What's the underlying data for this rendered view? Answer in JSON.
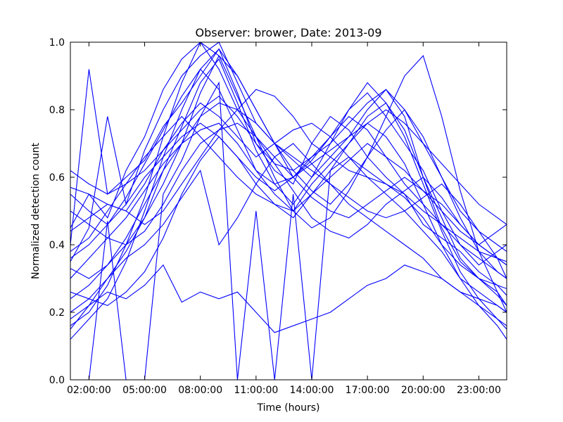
{
  "chart_data": {
    "type": "line",
    "title": "Observer: brower, Date: 2013-09",
    "xlabel": "Time (hours)",
    "ylabel": "Normalized detection count",
    "xlim": [
      1,
      24.5
    ],
    "ylim": [
      0.0,
      1.0
    ],
    "x_ticks": [
      2,
      5,
      8,
      11,
      14,
      17,
      20,
      23
    ],
    "x_tick_labels": [
      "02:00:00",
      "05:00:00",
      "08:00:00",
      "11:00:00",
      "14:00:00",
      "17:00:00",
      "20:00:00",
      "23:00:00"
    ],
    "y_ticks": [
      0.0,
      0.2,
      0.4,
      0.6,
      0.8,
      1.0
    ],
    "y_tick_labels": [
      "0.0",
      "0.2",
      "0.4",
      "0.6",
      "0.8",
      "1.0"
    ],
    "grid": false,
    "legend": false,
    "line_color": "#0000ff",
    "x": [
      1,
      2,
      3,
      4,
      5,
      6,
      7,
      8,
      9,
      10,
      11,
      12,
      13,
      14,
      15,
      16,
      17,
      18,
      19,
      20,
      21,
      22,
      23,
      24,
      24.5
    ],
    "series": [
      {
        "values": [
          0.45,
          0.55,
          0.48,
          0.62,
          0.72,
          0.86,
          0.95,
          1.0,
          0.92,
          0.8,
          0.72,
          0.66,
          0.6,
          0.65,
          0.72,
          0.8,
          0.85,
          0.78,
          0.7,
          0.62,
          0.5,
          0.4,
          0.34,
          0.38,
          0.4
        ]
      },
      {
        "values": [
          0.4,
          0.92,
          0.55,
          0.6,
          0.65,
          0.75,
          0.82,
          0.9,
          0.98,
          0.85,
          0.7,
          0.62,
          0.58,
          0.7,
          0.78,
          0.74,
          0.66,
          0.6,
          0.55,
          0.46,
          0.42,
          0.38,
          0.32,
          0.28,
          0.25
        ]
      },
      {
        "values": [
          0.35,
          0.45,
          0.78,
          0.52,
          0.68,
          0.8,
          0.9,
          0.96,
          1.0,
          0.88,
          0.76,
          0.7,
          0.65,
          0.6,
          0.66,
          0.72,
          0.8,
          0.86,
          0.78,
          0.6,
          0.45,
          0.35,
          0.3,
          0.25,
          0.22
        ]
      },
      {
        "values": [
          0.15,
          0.22,
          0.3,
          0.38,
          0.48,
          0.62,
          0.75,
          0.88,
          0.95,
          0.82,
          0.68,
          0.58,
          0.52,
          0.6,
          0.7,
          0.8,
          0.88,
          0.82,
          0.72,
          0.58,
          0.44,
          0.32,
          0.24,
          0.18,
          0.15
        ]
      },
      {
        "values": [
          0.12,
          0.18,
          0.24,
          0.35,
          0.5,
          0.66,
          0.8,
          0.92,
          0.86,
          0.74,
          0.62,
          0.55,
          0.5,
          0.58,
          0.64,
          0.7,
          0.76,
          0.72,
          0.64,
          0.52,
          0.4,
          0.3,
          0.22,
          0.16,
          0.12
        ]
      },
      {
        "values": [
          0.57,
          0.55,
          0.52,
          0.5,
          0.58,
          0.68,
          0.76,
          0.82,
          0.78,
          0.72,
          0.66,
          0.7,
          0.74,
          0.76,
          0.72,
          0.66,
          0.62,
          0.58,
          0.55,
          0.5,
          0.46,
          0.4,
          0.36,
          0.32,
          0.3
        ]
      },
      {
        "values": [
          0.0,
          0.0,
          0.47,
          0.0,
          0.0,
          0.55,
          0.65,
          0.78,
          0.88,
          0.0,
          0.5,
          0.0,
          0.55,
          0.0,
          0.62,
          0.7,
          0.78,
          0.82,
          0.74,
          0.6,
          0.48,
          0.36,
          0.3,
          0.26,
          0.22
        ]
      },
      {
        "values": [
          0.26,
          0.24,
          0.22,
          0.26,
          0.32,
          0.42,
          0.55,
          0.65,
          0.72,
          0.66,
          0.58,
          0.52,
          0.48,
          0.55,
          0.62,
          0.66,
          0.6,
          0.55,
          0.5,
          0.44,
          0.38,
          0.3,
          0.26,
          0.22,
          0.2
        ]
      },
      {
        "values": [
          0.3,
          0.36,
          0.42,
          0.48,
          0.56,
          0.64,
          0.7,
          0.74,
          0.76,
          0.7,
          0.62,
          0.58,
          0.6,
          0.66,
          0.72,
          0.78,
          0.74,
          0.66,
          0.58,
          0.52,
          0.46,
          0.42,
          0.38,
          0.36,
          0.35
        ]
      },
      {
        "values": [
          0.5,
          0.46,
          0.42,
          0.4,
          0.44,
          0.52,
          0.62,
          0.7,
          0.74,
          0.76,
          0.72,
          0.64,
          0.56,
          0.48,
          0.44,
          0.42,
          0.46,
          0.52,
          0.56,
          0.6,
          0.54,
          0.46,
          0.4,
          0.44,
          0.46
        ]
      },
      {
        "values": [
          0.2,
          0.24,
          0.3,
          0.36,
          0.4,
          0.46,
          0.54,
          0.62,
          0.4,
          0.48,
          0.58,
          0.66,
          0.7,
          0.64,
          0.58,
          0.52,
          0.48,
          0.44,
          0.4,
          0.36,
          0.3,
          0.26,
          0.22,
          0.18,
          0.16
        ]
      },
      {
        "values": [
          0.44,
          0.48,
          0.52,
          0.5,
          0.46,
          0.5,
          0.58,
          0.66,
          0.74,
          0.8,
          0.86,
          0.84,
          0.78,
          0.7,
          0.66,
          0.62,
          0.6,
          0.58,
          0.54,
          0.48,
          0.4,
          0.34,
          0.3,
          0.28,
          0.27
        ]
      },
      {
        "values": [
          0.62,
          0.58,
          0.55,
          0.58,
          0.62,
          0.68,
          0.74,
          0.8,
          0.84,
          0.78,
          0.7,
          0.64,
          0.62,
          0.66,
          0.7,
          0.76,
          0.82,
          0.86,
          0.8,
          0.7,
          0.6,
          0.5,
          0.44,
          0.4,
          0.38
        ]
      },
      {
        "values": [
          0.18,
          0.22,
          0.26,
          0.24,
          0.28,
          0.34,
          0.23,
          0.26,
          0.24,
          0.26,
          0.2,
          0.14,
          0.16,
          0.18,
          0.2,
          0.24,
          0.28,
          0.3,
          0.34,
          0.32,
          0.3,
          0.26,
          0.24,
          0.22,
          0.2
        ]
      },
      {
        "values": [
          0.33,
          0.3,
          0.34,
          0.4,
          0.48,
          0.58,
          0.7,
          0.85,
          0.96,
          0.9,
          0.8,
          0.7,
          0.62,
          0.56,
          0.52,
          0.58,
          0.66,
          0.74,
          0.8,
          0.72,
          0.6,
          0.48,
          0.38,
          0.32,
          0.3
        ]
      },
      {
        "values": [
          0.16,
          0.2,
          0.28,
          0.4,
          0.54,
          0.72,
          0.88,
          1.0,
          0.96,
          0.84,
          0.72,
          0.6,
          0.5,
          0.45,
          0.48,
          0.56,
          0.66,
          0.78,
          0.9,
          0.96,
          0.78,
          0.56,
          0.38,
          0.26,
          0.2
        ]
      },
      {
        "values": [
          0.38,
          0.42,
          0.5,
          0.58,
          0.66,
          0.72,
          0.78,
          0.72,
          0.66,
          0.6,
          0.55,
          0.52,
          0.5,
          0.55,
          0.6,
          0.65,
          0.7,
          0.66,
          0.62,
          0.56,
          0.5,
          0.44,
          0.4,
          0.36,
          0.34
        ]
      },
      {
        "values": [
          0.55,
          0.5,
          0.46,
          0.52,
          0.6,
          0.66,
          0.72,
          0.76,
          0.72,
          0.66,
          0.6,
          0.56,
          0.6,
          0.64,
          0.68,
          0.72,
          0.76,
          0.8,
          0.76,
          0.7,
          0.64,
          0.58,
          0.52,
          0.48,
          0.46
        ]
      },
      {
        "values": [
          0.24,
          0.28,
          0.34,
          0.42,
          0.52,
          0.62,
          0.7,
          0.78,
          0.82,
          0.8,
          0.76,
          0.7,
          0.66,
          0.62,
          0.58,
          0.54,
          0.5,
          0.48,
          0.5,
          0.54,
          0.58,
          0.52,
          0.44,
          0.36,
          0.3
        ]
      },
      {
        "values": [
          0.36,
          0.4,
          0.46,
          0.54,
          0.64,
          0.74,
          0.84,
          0.92,
          0.98,
          0.9,
          0.8,
          0.7,
          0.6,
          0.54,
          0.5,
          0.48,
          0.52,
          0.56,
          0.6,
          0.56,
          0.52,
          0.46,
          0.4,
          0.36,
          0.34
        ]
      }
    ]
  }
}
